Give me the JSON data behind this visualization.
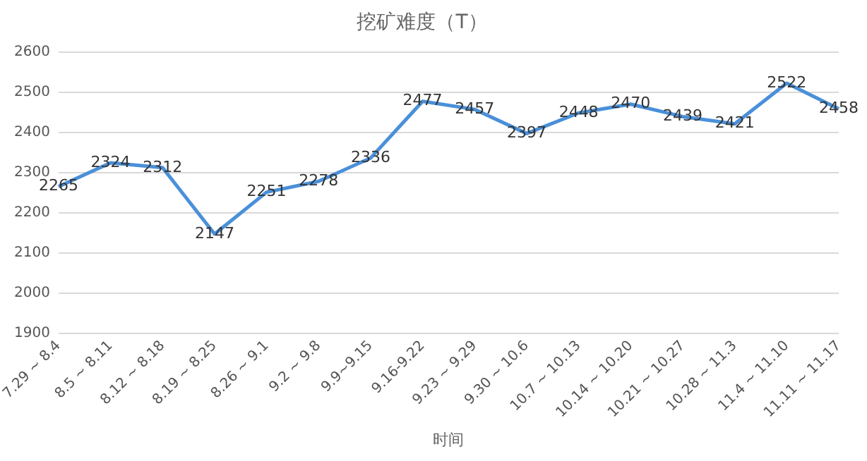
{
  "chart_data": {
    "type": "line",
    "title": "挖矿难度（T）",
    "xlabel": "时间",
    "categories": [
      "7.29 ~ 8.4",
      "8.5 ~ 8.11",
      "8.12 ~ 8.18",
      "8.19 ~ 8.25",
      "8.26 ~ 9.1",
      "9.2 ~ 9.8",
      "9.9~9.15",
      "9.16-9.22",
      "9.23 ~ 9.29",
      "9.30 ~ 10.6",
      "10.7 ~ 10.13",
      "10.14 ~ 10.20",
      "10.21 ~ 10.27",
      "10.28 ~ 11.3",
      "11.4 ~ 11.10",
      "11.11 ~ 11.17"
    ],
    "series": [
      {
        "color": "#4a90d9",
        "values": [
          2265,
          2324,
          2312,
          2147,
          2251,
          2278,
          2336,
          2477,
          2457,
          2397,
          2448,
          2470,
          2439,
          2421,
          2522,
          2458
        ]
      }
    ],
    "ylim": [
      1900,
      2600
    ],
    "yticks": [
      1900,
      2000,
      2100,
      2200,
      2300,
      2400,
      2500,
      2600
    ],
    "grid": "y",
    "data_labels": true,
    "marker": "none",
    "legend": false
  }
}
